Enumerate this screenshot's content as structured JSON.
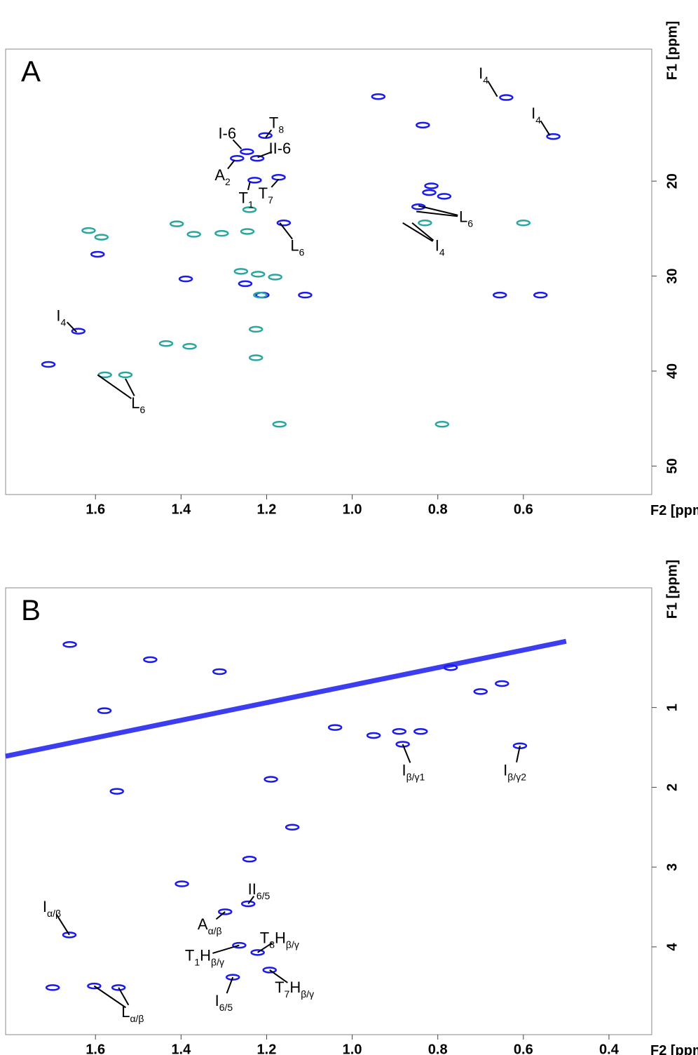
{
  "chart_data": [
    {
      "type": "scatter",
      "panel": "A",
      "xlabel": "F2 [ppm]",
      "ylabel": "F1 [ppm]",
      "xlim": [
        1.81,
        0.3
      ],
      "ylim": [
        6.1,
        53
      ],
      "xticks": [
        1.6,
        1.4,
        1.2,
        {
          "value": 1,
          "label": "1.0"
        },
        0.8,
        0.6
      ],
      "yticks": [
        20,
        30,
        40,
        50
      ],
      "series": [
        {
          "color": "#1a1aee",
          "x": [
            0.939,
            0.64,
            0.53,
            0.835,
            1.246,
            1.222,
            1.269,
            1.203,
            1.228,
            1.172,
            0.785,
            0.845,
            0.815,
            1.16,
            1.595,
            1.389,
            1.25,
            1.21,
            1.11,
            0.655,
            0.56,
            1.64,
            1.71,
            0.82
          ],
          "y": [
            11.1,
            11.2,
            15.3,
            14.1,
            16.9,
            17.6,
            17.6,
            15.2,
            19.9,
            19.6,
            21.6,
            22.7,
            20.5,
            24.4,
            27.7,
            30.3,
            30.8,
            32.0,
            32.0,
            32.0,
            32.0,
            35.8,
            39.3,
            21.2
          ]
        },
        {
          "color": "#2aa6a0",
          "x": [
            1.616,
            1.586,
            1.41,
            1.37,
            1.305,
            1.245,
            1.24,
            1.26,
            1.22,
            1.18,
            1.215,
            1.435,
            1.38,
            1.578,
            1.53,
            1.17,
            0.79,
            0.83,
            0.6,
            1.225,
            1.225
          ],
          "y": [
            25.2,
            25.9,
            24.5,
            25.6,
            25.5,
            25.3,
            23.0,
            29.5,
            29.8,
            30.1,
            32.0,
            37.1,
            37.4,
            40.4,
            40.4,
            45.6,
            45.6,
            24.4,
            24.4,
            35.6,
            38.6
          ]
        }
      ],
      "annotations": [
        {
          "text": "I",
          "sub": "4",
          "x": 0.693,
          "y": 8.7,
          "to": [
            [
              0.661,
              11.1
            ]
          ]
        },
        {
          "text": "I",
          "sub": "4",
          "x": 0.57,
          "y": 12.9,
          "to": [
            [
              0.538,
              15.2
            ]
          ]
        },
        {
          "text": "T",
          "sub": "8",
          "x": 1.177,
          "y": 13.9,
          "to": [
            [
              1.202,
              15.4
            ]
          ]
        },
        {
          "text": "I-6",
          "x": 1.292,
          "y": 15.0,
          "to": [
            [
              1.259,
              16.6
            ]
          ]
        },
        {
          "text": "II-6",
          "x": 1.169,
          "y": 16.6,
          "to": [
            [
              1.221,
              17.5
            ]
          ]
        },
        {
          "text": "A",
          "sub": "2",
          "x": 1.303,
          "y": 19.4,
          "to": [
            [
              1.275,
              17.8
            ]
          ]
        },
        {
          "text": "T",
          "sub": "7",
          "x": 1.202,
          "y": 21.3,
          "to": [
            [
              1.172,
              19.8
            ]
          ]
        },
        {
          "text": "T",
          "sub": "1",
          "x": 1.248,
          "y": 21.8,
          "to": [
            [
              1.239,
              20.1
            ]
          ]
        },
        {
          "text": "L",
          "sub": "6",
          "x": 1.128,
          "y": 26.8,
          "to": [
            [
              1.169,
              24.4
            ]
          ]
        },
        {
          "text": "L",
          "sub": "6",
          "x": 0.734,
          "y": 23.8,
          "to": [
            [
              0.845,
              22.6
            ],
            [
              0.85,
              23.2
            ]
          ]
        },
        {
          "text": "I",
          "sub": "4",
          "x": 0.795,
          "y": 26.8,
          "to": [
            [
              0.882,
              24.4
            ],
            [
              0.86,
              24.4
            ]
          ]
        },
        {
          "text": "I",
          "sub": "4",
          "x": 1.68,
          "y": 34.2,
          "to": [
            [
              1.644,
              35.9
            ]
          ]
        },
        {
          "text": "L",
          "sub": "6",
          "x": 1.5,
          "y": 43.4,
          "to": [
            [
              1.53,
              40.8
            ],
            [
              1.595,
              40.4
            ]
          ]
        }
      ]
    },
    {
      "type": "scatter",
      "panel": "B",
      "xlabel": "F2 [ppm]",
      "ylabel": "F1 [ppm]",
      "xlim": [
        1.81,
        0.3
      ],
      "ylim": [
        -0.5,
        5.1
      ],
      "xticks": [
        1.6,
        1.4,
        1.2,
        {
          "value": 1,
          "label": "1.0"
        },
        0.8,
        0.6,
        0.4
      ],
      "yticks": [
        1,
        2,
        3,
        4
      ],
      "diagonal": {
        "color": "#1a1aee",
        "x": [
          1.81,
          0.5
        ],
        "y": [
          1.61,
          0.17
        ]
      },
      "series": [
        {
          "color": "#1a1aee",
          "x": [
            1.297,
            1.243,
            1.264,
            1.221,
            1.193,
            1.279,
            0.608,
            0.882,
            1.661,
            1.546,
            1.603,
            1.7,
            1.55,
            1.66,
            1.472,
            1.579,
            0.95,
            0.89,
            0.84,
            1.19,
            1.24,
            1.398,
            0.65,
            0.77,
            1.31,
            1.14,
            1.04,
            0.7
          ],
          "y": [
            3.56,
            3.46,
            3.98,
            4.07,
            4.29,
            4.38,
            1.48,
            1.46,
            3.85,
            4.51,
            4.49,
            4.51,
            2.05,
            0.21,
            0.4,
            1.04,
            1.35,
            1.3,
            1.3,
            1.9,
            2.9,
            3.21,
            0.7,
            0.5,
            0.55,
            2.5,
            1.25,
            0.8
          ]
        }
      ],
      "annotations": [
        {
          "text": "I",
          "sub": "β/γ1",
          "x": 0.857,
          "y": 1.79,
          "to": [
            [
              0.882,
              1.46
            ]
          ]
        },
        {
          "text": "I",
          "sub": "β/γ2",
          "x": 0.62,
          "y": 1.79,
          "to": [
            [
              0.608,
              1.48
            ]
          ]
        },
        {
          "text": "I",
          "sub": "α/β",
          "x": 1.702,
          "y": 3.5,
          "to": [
            [
              1.661,
              3.85
            ]
          ]
        },
        {
          "text": "L",
          "sub": "α/β",
          "x": 1.513,
          "y": 4.82,
          "to": [
            [
              1.546,
              4.51
            ],
            [
              1.603,
              4.49
            ]
          ]
        },
        {
          "text": "II",
          "sub": "6/5",
          "x": 1.218,
          "y": 3.28,
          "to": [
            [
              1.243,
              3.46
            ]
          ]
        },
        {
          "text": "A",
          "sub": "α/β",
          "x": 1.333,
          "y": 3.72,
          "to": [
            [
              1.297,
              3.56
            ]
          ]
        },
        {
          "text": "T",
          "sub": "8",
          "text2": "H",
          "sub2": "β/γ",
          "x": 1.17,
          "y": 3.89,
          "to": [
            [
              1.221,
              4.07
            ]
          ]
        },
        {
          "text": "T",
          "sub": "1",
          "text2": "H",
          "sub2": "β/γ",
          "x": 1.345,
          "y": 4.11,
          "to": [
            [
              1.264,
              3.98
            ]
          ]
        },
        {
          "text": "T",
          "sub": "7",
          "text2": "H",
          "sub2": "β/γ",
          "x": 1.135,
          "y": 4.51,
          "to": [
            [
              1.193,
              4.29
            ]
          ]
        },
        {
          "text": "I",
          "sub": "6/5",
          "x": 1.3,
          "y": 4.68,
          "to": [
            [
              1.279,
              4.38
            ]
          ]
        }
      ]
    }
  ]
}
